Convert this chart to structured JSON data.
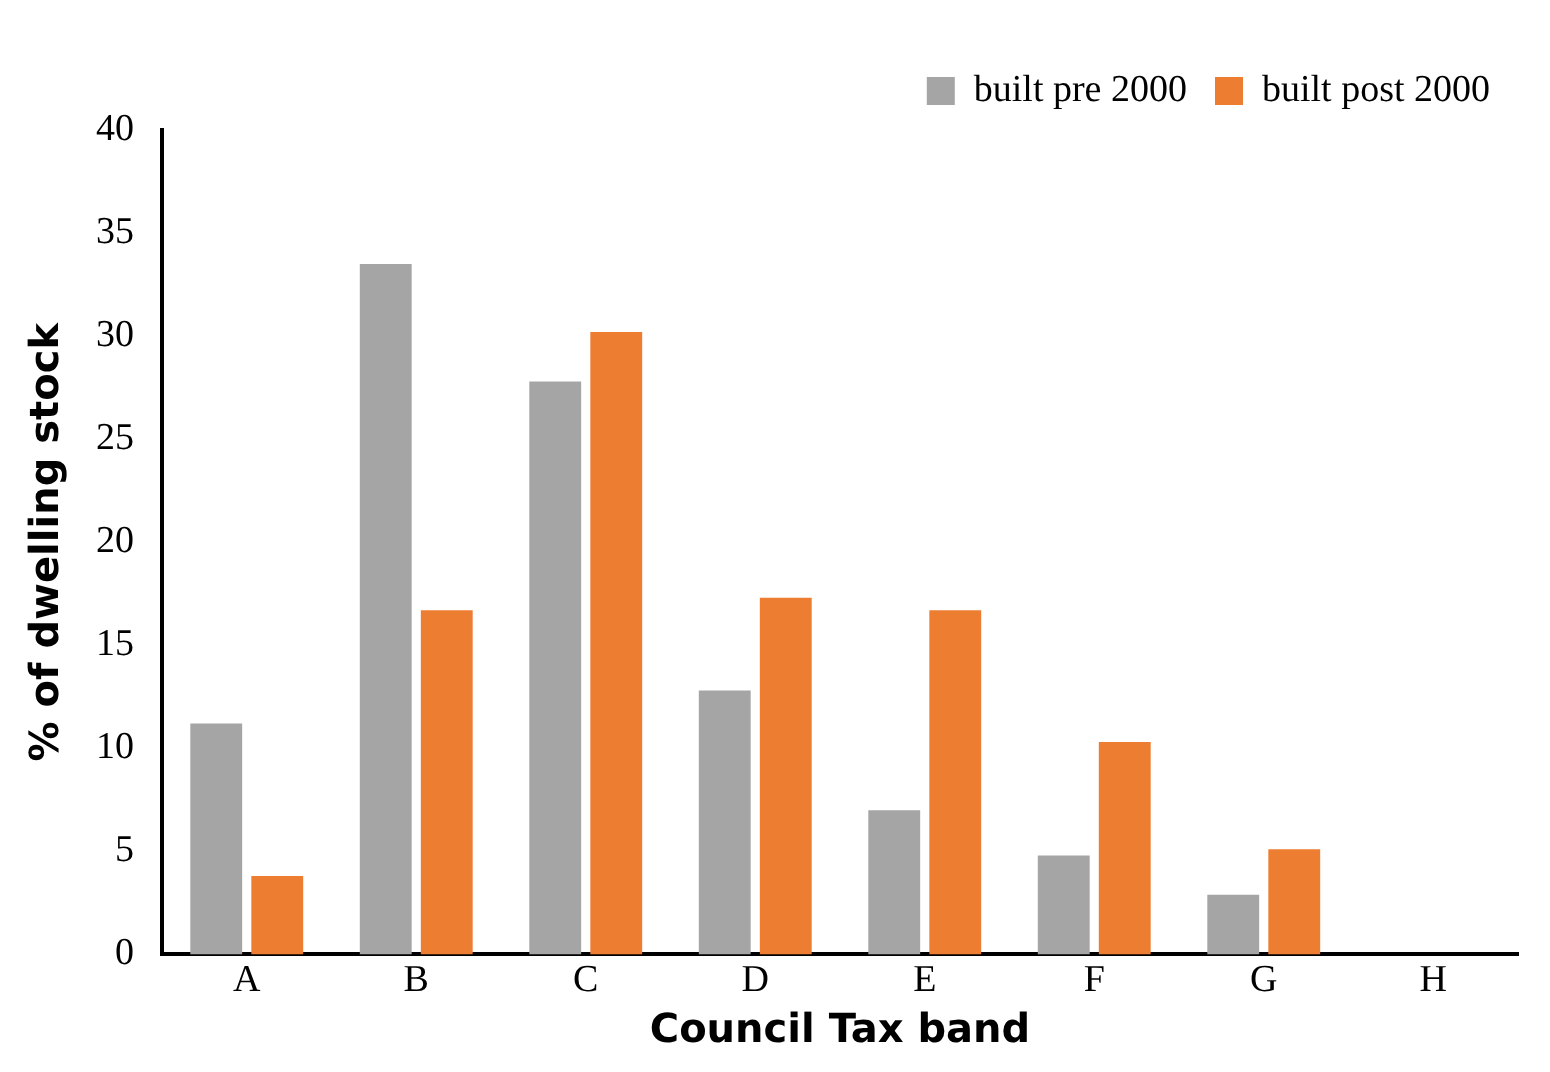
{
  "chart_data": {
    "type": "bar",
    "xlabel": "Council Tax band",
    "ylabel": "% of dwelling stock",
    "categories": [
      "A",
      "B",
      "C",
      "D",
      "E",
      "F",
      "G",
      "H"
    ],
    "series": [
      {
        "name": "built pre 2000",
        "color": "#a5a5a5",
        "values": [
          11.2,
          33.5,
          27.8,
          12.8,
          7.0,
          4.8,
          2.9,
          0
        ]
      },
      {
        "name": "built post 2000",
        "color": "#ed7d31",
        "values": [
          3.8,
          16.7,
          30.2,
          17.3,
          16.7,
          10.3,
          5.1,
          0
        ]
      }
    ],
    "ylim": [
      0,
      40
    ],
    "yticks": [
      0,
      5,
      10,
      15,
      20,
      25,
      30,
      35,
      40
    ],
    "grid": false,
    "legend": "top right"
  }
}
